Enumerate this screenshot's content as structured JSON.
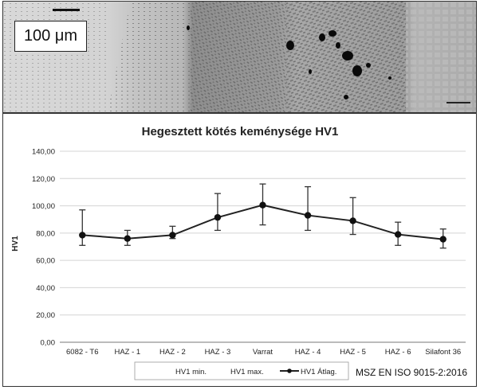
{
  "micrograph": {
    "scale_label": "100 μm"
  },
  "chart_data": {
    "type": "line",
    "title": "Hegesztett kötés keménysége HV1",
    "ylabel": "HV1",
    "xlabel": "",
    "ylim": [
      0,
      140
    ],
    "yticks": [
      "0,00",
      "20,00",
      "40,00",
      "60,00",
      "80,00",
      "100,00",
      "120,00",
      "140,00"
    ],
    "categories": [
      "6082 - T6",
      "HAZ - 1",
      "HAZ - 2",
      "HAZ - 3",
      "Varrat",
      "HAZ - 4",
      "HAZ - 5",
      "HAZ - 6",
      "Silafont 36"
    ],
    "series": [
      {
        "name": "HV1 min.",
        "values": [
          71,
          71,
          76,
          82,
          86,
          82,
          79,
          71,
          69
        ]
      },
      {
        "name": "HV1 max.",
        "values": [
          97,
          82,
          85,
          109,
          116,
          114,
          106,
          88,
          83
        ]
      },
      {
        "name": "HV1 Átlag.",
        "values": [
          78.5,
          76,
          78.5,
          91.5,
          100.5,
          93,
          89,
          79,
          75.5
        ]
      }
    ],
    "grid": true,
    "legend": "bottom"
  },
  "standard_label": "MSZ EN ISO 9015-2:2016"
}
